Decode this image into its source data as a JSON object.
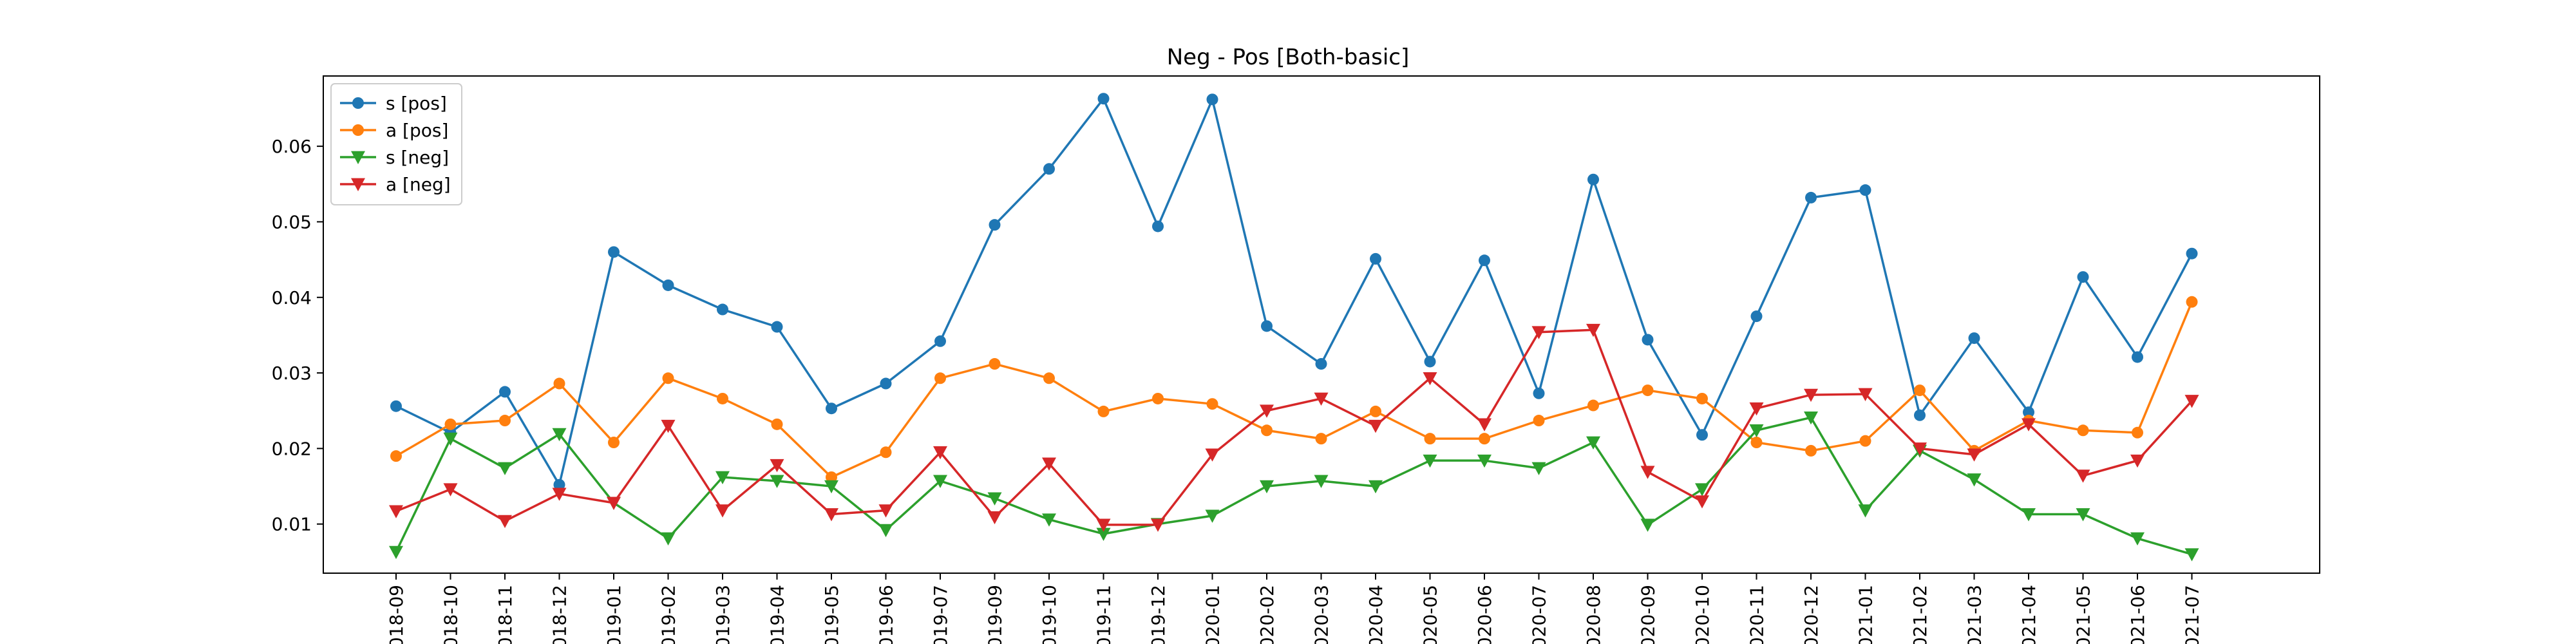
{
  "chart_data": {
    "type": "line",
    "title": "Neg - Pos [Both-basic]",
    "xlabel": "",
    "ylabel": "",
    "ylim": [
      0.0035,
      0.0693
    ],
    "yticks": [
      0.01,
      0.02,
      0.03,
      0.04,
      0.05,
      0.06
    ],
    "ytick_labels": [
      "0.01",
      "0.02",
      "0.03",
      "0.04",
      "0.05",
      "0.06"
    ],
    "grid": false,
    "legend_position": "top-left",
    "categories": [
      "2018-09",
      "2018-10",
      "2018-11",
      "2018-12",
      "2019-01",
      "2019-02",
      "2019-03",
      "2019-04",
      "2019-05",
      "2019-06",
      "2019-07",
      "2019-09",
      "2019-10",
      "2019-11",
      "2019-12",
      "2020-01",
      "2020-02",
      "2020-03",
      "2020-04",
      "2020-05",
      "2020-06",
      "2020-07",
      "2020-08",
      "2020-09",
      "2020-10",
      "2020-11",
      "2020-12",
      "2021-01",
      "2021-02",
      "2021-03",
      "2021-04",
      "2021-05",
      "2021-06",
      "2021-07"
    ],
    "series": [
      {
        "name": "s [pos]",
        "color": "#1f77b4",
        "marker": "circle",
        "values": [
          0.0256,
          0.0221,
          0.0275,
          0.0152,
          0.046,
          0.0416,
          0.0384,
          0.0361,
          0.0253,
          0.0286,
          0.0342,
          0.0496,
          0.057,
          0.0663,
          0.0494,
          0.0662,
          0.0362,
          0.0312,
          0.0451,
          0.0315,
          0.0449,
          0.0273,
          0.0556,
          0.0344,
          0.0218,
          0.0375,
          0.0532,
          0.0542,
          0.0244,
          0.0346,
          0.0248,
          0.0427,
          0.0321,
          0.0458
        ]
      },
      {
        "name": "a [pos]",
        "color": "#ff7f0e",
        "marker": "circle",
        "values": [
          0.019,
          0.0232,
          0.0237,
          0.0286,
          0.0208,
          0.0293,
          0.0266,
          0.0232,
          0.0162,
          0.0195,
          0.0293,
          0.0312,
          0.0293,
          0.0249,
          0.0266,
          0.0259,
          0.0224,
          0.0213,
          0.0249,
          0.0213,
          0.0213,
          0.0237,
          0.0257,
          0.0277,
          0.0266,
          0.0208,
          0.0197,
          0.021,
          0.0277,
          0.0197,
          0.0237,
          0.0224,
          0.0221,
          0.0394
        ]
      },
      {
        "name": "s [neg]",
        "color": "#2ca02c",
        "marker": "triangle-down",
        "values": [
          0.0063,
          0.0213,
          0.0174,
          0.0219,
          0.0128,
          0.0081,
          0.0162,
          0.0157,
          0.015,
          0.0092,
          0.0157,
          0.0134,
          0.0106,
          0.0087,
          0.01,
          0.0111,
          0.015,
          0.0157,
          0.015,
          0.0184,
          0.0184,
          0.0174,
          0.0208,
          0.0099,
          0.0146,
          0.0224,
          0.0241,
          0.0118,
          0.0197,
          0.0159,
          0.0113,
          0.0113,
          0.0081,
          0.006
        ]
      },
      {
        "name": "a [neg]",
        "color": "#d62728",
        "marker": "triangle-down",
        "values": [
          0.0117,
          0.0146,
          0.0104,
          0.014,
          0.0128,
          0.023,
          0.0118,
          0.0178,
          0.0113,
          0.0118,
          0.0195,
          0.0109,
          0.018,
          0.0099,
          0.0099,
          0.0192,
          0.025,
          0.0266,
          0.023,
          0.0293,
          0.0232,
          0.0354,
          0.0357,
          0.0169,
          0.013,
          0.0253,
          0.0271,
          0.0272,
          0.02,
          0.0192,
          0.0232,
          0.0164,
          0.0184,
          0.0263
        ]
      }
    ]
  }
}
